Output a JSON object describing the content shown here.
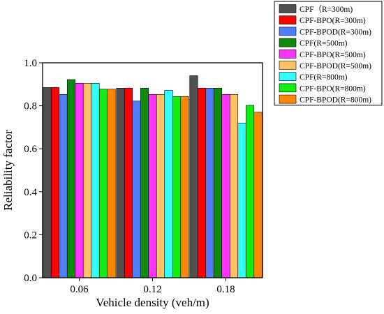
{
  "chart_data": {
    "type": "bar",
    "xlabel": "Vehicle density (veh/m)",
    "ylabel": "Reliability factor",
    "categories": [
      "0.06",
      "0.12",
      "0.18"
    ],
    "ylim": [
      0.0,
      1.0
    ],
    "yticks": [
      "0.0",
      "0.2",
      "0.4",
      "0.6",
      "0.8",
      "1.0"
    ],
    "grid": false,
    "legend_position": "top-right",
    "series": [
      {
        "name": "CPF（R=300m)",
        "color": "#505050",
        "values": [
          0.885,
          0.882,
          0.94
        ]
      },
      {
        "name": "CPF-BPO(R=300m)",
        "color": "#ff0000",
        "values": [
          0.885,
          0.882,
          0.882
        ]
      },
      {
        "name": "CPF-BPOD(R=300m)",
        "color": "#4f7fff",
        "values": [
          0.853,
          0.822,
          0.882
        ]
      },
      {
        "name": "CPF(R=500m)",
        "color": "#0f8a0f",
        "values": [
          0.922,
          0.882,
          0.882
        ]
      },
      {
        "name": "CPF-BPO(R=500m)",
        "color": "#ff33ff",
        "values": [
          0.905,
          0.853,
          0.853
        ]
      },
      {
        "name": "CPF-BPOD(R=500m)",
        "color": "#ffc266",
        "values": [
          0.905,
          0.853,
          0.853
        ]
      },
      {
        "name": "CPF(R=800m)",
        "color": "#33ffff",
        "values": [
          0.905,
          0.872,
          0.72
        ]
      },
      {
        "name": "CPF-BPO(R=800m)",
        "color": "#11ee11",
        "values": [
          0.877,
          0.843,
          0.802
        ]
      },
      {
        "name": "CPF-BPOD(R=800m)",
        "color": "#ff8800",
        "values": [
          0.877,
          0.843,
          0.77
        ]
      }
    ]
  }
}
